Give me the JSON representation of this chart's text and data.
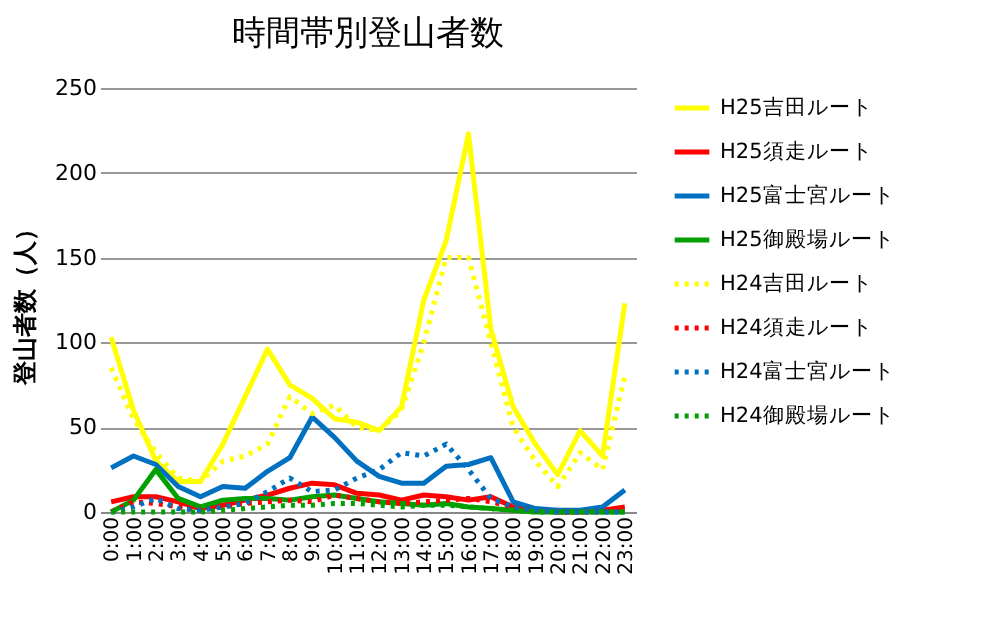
{
  "chart_data": {
    "type": "line",
    "title": "時間帯別登山者数",
    "ylabel": "登山者数（人）",
    "categories": [
      "0:00",
      "1:00",
      "2:00",
      "3:00",
      "4:00",
      "5:00",
      "6:00",
      "7:00",
      "8:00",
      "9:00",
      "10:00",
      "11:00",
      "12:00",
      "13:00",
      "14:00",
      "15:00",
      "16:00",
      "17:00",
      "18:00",
      "19:00",
      "20:00",
      "21:00",
      "22:00",
      "23:00"
    ],
    "ylim": [
      0,
      250
    ],
    "yticks": [
      0,
      50,
      100,
      150,
      200,
      250
    ],
    "grid": "y",
    "legend": "right",
    "marker": "none",
    "series": [
      {
        "name": "H25吉田ルート",
        "color": "#ffff00",
        "line_style": "solid",
        "values": [
          103,
          60,
          30,
          18,
          18,
          40,
          68,
          96,
          75,
          67,
          55,
          53,
          48,
          62,
          125,
          160,
          223,
          108,
          62,
          40,
          22,
          48,
          33,
          123
        ]
      },
      {
        "name": "H25須走ルート",
        "color": "#ff0000",
        "line_style": "solid",
        "values": [
          6,
          9,
          9,
          6,
          2,
          4,
          7,
          10,
          14,
          17,
          16,
          11,
          10,
          7,
          10,
          9,
          7,
          9,
          3,
          1,
          0,
          0,
          1,
          3
        ]
      },
      {
        "name": "H25富士宮ルート",
        "color": "#0070c0",
        "line_style": "solid",
        "values": [
          26,
          33,
          28,
          15,
          9,
          15,
          14,
          24,
          32,
          56,
          44,
          30,
          21,
          17,
          17,
          27,
          28,
          32,
          6,
          2,
          1,
          1,
          3,
          13
        ]
      },
      {
        "name": "H25御殿場ルート",
        "color": "#00a000",
        "line_style": "solid",
        "values": [
          0,
          7,
          25,
          8,
          3,
          7,
          8,
          8,
          7,
          9,
          10,
          8,
          6,
          5,
          4,
          5,
          3,
          2,
          1,
          0,
          0,
          0,
          0,
          0
        ]
      },
      {
        "name": "H24吉田ルート",
        "color": "#ffff00",
        "line_style": "dotted",
        "values": [
          85,
          55,
          35,
          20,
          18,
          30,
          33,
          40,
          68,
          58,
          63,
          50,
          48,
          60,
          100,
          150,
          150,
          100,
          50,
          30,
          15,
          35,
          25,
          80
        ]
      },
      {
        "name": "H24須走ルート",
        "color": "#ff0000",
        "line_style": "dotted",
        "values": [
          0,
          6,
          5,
          3,
          1,
          3,
          5,
          6,
          7,
          6,
          10,
          8,
          6,
          5,
          6,
          7,
          8,
          6,
          3,
          1,
          0,
          0,
          0,
          1
        ]
      },
      {
        "name": "H24富士宮ルート",
        "color": "#0070c0",
        "line_style": "dotted",
        "values": [
          0,
          3,
          8,
          2,
          1,
          3,
          5,
          12,
          20,
          12,
          13,
          20,
          25,
          35,
          33,
          40,
          25,
          8,
          3,
          1,
          0,
          0,
          0,
          0
        ]
      },
      {
        "name": "H24御殿場ルート",
        "color": "#00a000",
        "line_style": "dotted",
        "values": [
          0,
          0,
          0,
          0,
          0,
          1,
          2,
          3,
          4,
          4,
          5,
          5,
          4,
          3,
          4,
          4,
          3,
          2,
          1,
          0,
          0,
          0,
          0,
          0
        ]
      }
    ]
  }
}
